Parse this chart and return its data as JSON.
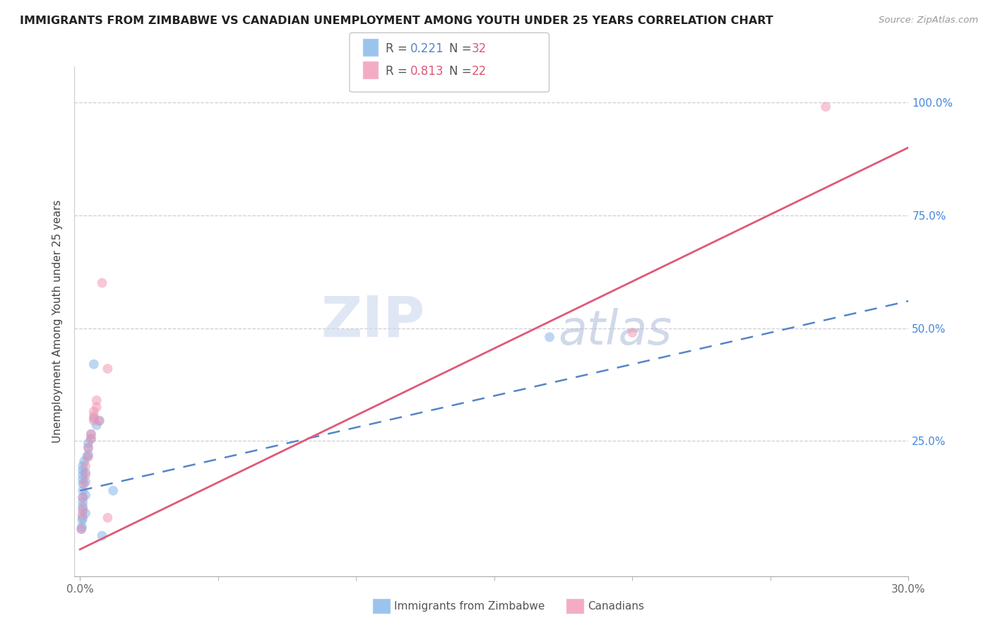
{
  "title": "IMMIGRANTS FROM ZIMBABWE VS CANADIAN UNEMPLOYMENT AMONG YOUTH UNDER 25 YEARS CORRELATION CHART",
  "source": "Source: ZipAtlas.com",
  "xlabel_ticks_shown": [
    "0.0%",
    "30.0%"
  ],
  "xlabel_ticks_pos": [
    0.0,
    0.3
  ],
  "xlabel_minor_ticks": [
    0.05,
    0.1,
    0.15,
    0.2,
    0.25
  ],
  "ylabel": "Unemployment Among Youth under 25 years",
  "ylabel_ticks_right": [
    "100.0%",
    "75.0%",
    "50.0%",
    "25.0%"
  ],
  "ylabel_vals_right": [
    1.0,
    0.75,
    0.5,
    0.25
  ],
  "ylabel_grid_vals": [
    0.25,
    0.5,
    0.75,
    1.0
  ],
  "xlim": [
    -0.002,
    0.3
  ],
  "ylim": [
    -0.05,
    1.08
  ],
  "blue_scatter": [
    [
      0.0005,
      0.055
    ],
    [
      0.0007,
      0.06
    ],
    [
      0.0008,
      0.075
    ],
    [
      0.001,
      0.08
    ],
    [
      0.001,
      0.095
    ],
    [
      0.001,
      0.105
    ],
    [
      0.001,
      0.115
    ],
    [
      0.001,
      0.125
    ],
    [
      0.001,
      0.14
    ],
    [
      0.001,
      0.155
    ],
    [
      0.001,
      0.165
    ],
    [
      0.001,
      0.175
    ],
    [
      0.001,
      0.185
    ],
    [
      0.001,
      0.195
    ],
    [
      0.0015,
      0.205
    ],
    [
      0.002,
      0.09
    ],
    [
      0.002,
      0.13
    ],
    [
      0.002,
      0.16
    ],
    [
      0.002,
      0.18
    ],
    [
      0.0025,
      0.215
    ],
    [
      0.003,
      0.22
    ],
    [
      0.003,
      0.235
    ],
    [
      0.003,
      0.245
    ],
    [
      0.004,
      0.255
    ],
    [
      0.004,
      0.265
    ],
    [
      0.005,
      0.3
    ],
    [
      0.005,
      0.42
    ],
    [
      0.006,
      0.285
    ],
    [
      0.007,
      0.295
    ],
    [
      0.008,
      0.04
    ],
    [
      0.012,
      0.14
    ],
    [
      0.17,
      0.48
    ]
  ],
  "pink_scatter": [
    [
      0.0005,
      0.055
    ],
    [
      0.0008,
      0.085
    ],
    [
      0.001,
      0.1
    ],
    [
      0.001,
      0.125
    ],
    [
      0.0015,
      0.155
    ],
    [
      0.002,
      0.175
    ],
    [
      0.002,
      0.195
    ],
    [
      0.003,
      0.215
    ],
    [
      0.003,
      0.235
    ],
    [
      0.004,
      0.255
    ],
    [
      0.004,
      0.265
    ],
    [
      0.005,
      0.295
    ],
    [
      0.005,
      0.305
    ],
    [
      0.005,
      0.315
    ],
    [
      0.006,
      0.325
    ],
    [
      0.006,
      0.34
    ],
    [
      0.007,
      0.295
    ],
    [
      0.008,
      0.6
    ],
    [
      0.01,
      0.41
    ],
    [
      0.01,
      0.08
    ],
    [
      0.2,
      0.49
    ],
    [
      0.27,
      0.99
    ]
  ],
  "blue_line_x": [
    0.0,
    0.3
  ],
  "blue_line_y": [
    0.14,
    0.56
  ],
  "pink_line_x": [
    0.0,
    0.3
  ],
  "pink_line_y": [
    0.01,
    0.9
  ],
  "scatter_alpha": 0.5,
  "scatter_size": 100,
  "blue_color": "#7ab0e8",
  "pink_color": "#f090b0",
  "blue_line_color": "#5585c8",
  "pink_line_color": "#e05878",
  "watermark_zip": "ZIP",
  "watermark_atlas": "atlas",
  "grid_color": "#c8c8d8",
  "bg_color": "#ffffff"
}
